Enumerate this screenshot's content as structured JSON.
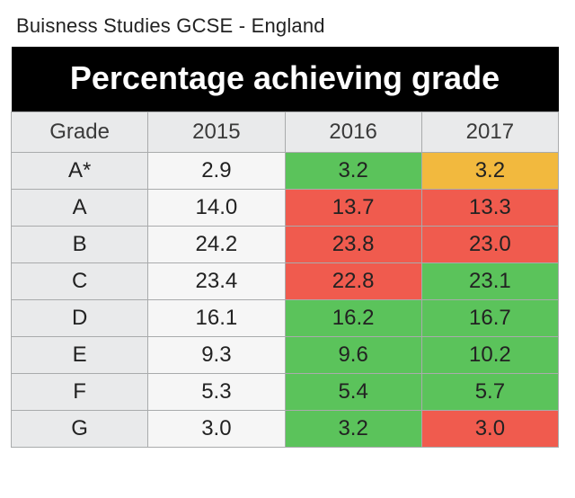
{
  "title": "Buisness Studies  GCSE - England",
  "table": {
    "banner": "Percentage achieving grade",
    "columns": [
      "Grade",
      "2015",
      "2016",
      "2017"
    ],
    "colors": {
      "green": "#5bc35b",
      "red": "#f05b4e",
      "orange": "#f2b93e",
      "base": "#f6f6f6",
      "label": "#e9eaeb"
    },
    "rows": [
      {
        "grade": "A*",
        "values": [
          "2.9",
          "3.2",
          "3.2"
        ],
        "colors": [
          "base",
          "green",
          "orange"
        ]
      },
      {
        "grade": "A",
        "values": [
          "14.0",
          "13.7",
          "13.3"
        ],
        "colors": [
          "base",
          "red",
          "red"
        ]
      },
      {
        "grade": "B",
        "values": [
          "24.2",
          "23.8",
          "23.0"
        ],
        "colors": [
          "base",
          "red",
          "red"
        ]
      },
      {
        "grade": "C",
        "values": [
          "23.4",
          "22.8",
          "23.1"
        ],
        "colors": [
          "base",
          "red",
          "green"
        ]
      },
      {
        "grade": "D",
        "values": [
          "16.1",
          "16.2",
          "16.7"
        ],
        "colors": [
          "base",
          "green",
          "green"
        ]
      },
      {
        "grade": "E",
        "values": [
          "9.3",
          "9.6",
          "10.2"
        ],
        "colors": [
          "base",
          "green",
          "green"
        ]
      },
      {
        "grade": "F",
        "values": [
          "5.3",
          "5.4",
          "5.7"
        ],
        "colors": [
          "base",
          "green",
          "green"
        ]
      },
      {
        "grade": "G",
        "values": [
          "3.0",
          "3.2",
          "3.0"
        ],
        "colors": [
          "base",
          "green",
          "red"
        ]
      }
    ]
  }
}
